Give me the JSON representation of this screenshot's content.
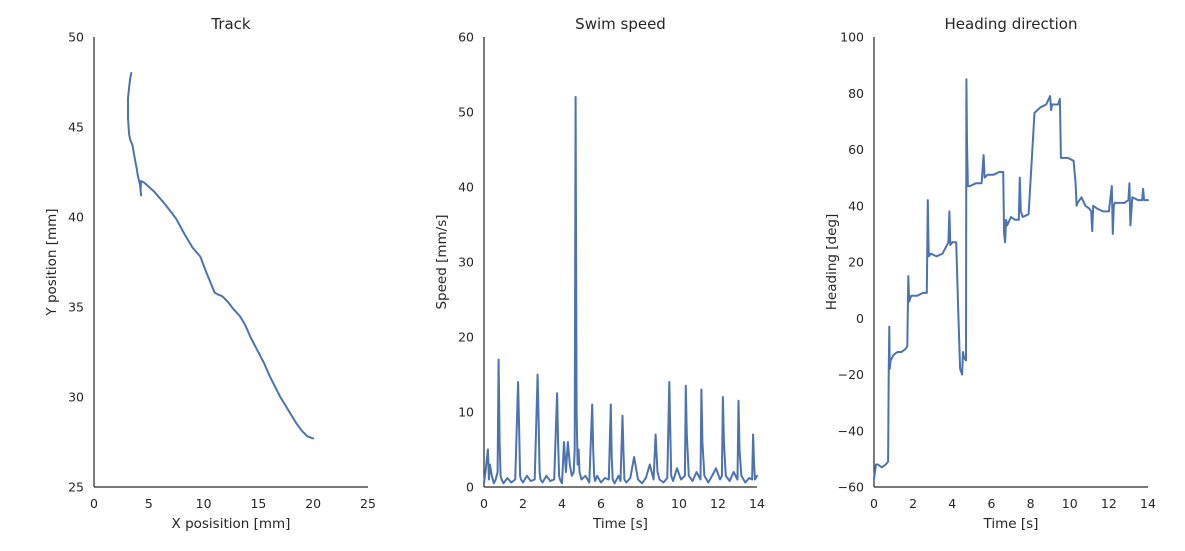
{
  "chart_data": [
    {
      "type": "line",
      "title": "Track",
      "xlabel": "X posisition [mm]",
      "ylabel": "Y position [mm]",
      "xlim": [
        0,
        25
      ],
      "ylim": [
        25,
        50
      ],
      "xticks": [
        "0",
        "5",
        "10",
        "15",
        "20",
        "25"
      ],
      "yticks": [
        "25",
        "30",
        "35",
        "40",
        "45",
        "50"
      ],
      "grid": false,
      "series": [
        {
          "color": "#4c72b0",
          "x": [
            3.4,
            3.3,
            3.2,
            3.1,
            3.1,
            3.1,
            3.2,
            3.3,
            3.5,
            3.8,
            3.9,
            4.0,
            4.2,
            4.3,
            4.25,
            4.3,
            4.6,
            5.5,
            6.5,
            7.5,
            8.3,
            9.0,
            9.7,
            10.2,
            10.6,
            11.0,
            11.3,
            11.7,
            12.2,
            12.7,
            13.3,
            13.8,
            14.3,
            14.9,
            15.5,
            16.0,
            16.5,
            17.0,
            17.5,
            18.0,
            18.5,
            19.0,
            19.5,
            20.0
          ],
          "y": [
            48.0,
            47.7,
            47.2,
            46.6,
            46.1,
            45.5,
            44.6,
            44.3,
            44.0,
            43.0,
            42.7,
            42.3,
            41.8,
            41.2,
            41.5,
            42.0,
            41.9,
            41.4,
            40.7,
            39.9,
            39.0,
            38.3,
            37.8,
            37.0,
            36.4,
            35.8,
            35.7,
            35.6,
            35.3,
            34.9,
            34.5,
            34.0,
            33.3,
            32.6,
            31.9,
            31.2,
            30.6,
            30.0,
            29.5,
            29.0,
            28.5,
            28.1,
            27.8,
            27.7
          ]
        }
      ]
    },
    {
      "type": "line",
      "title": "Swim speed",
      "xlabel": "Time [s]",
      "ylabel": "Speed [mm/s]",
      "xlim": [
        0,
        14
      ],
      "ylim": [
        0,
        60
      ],
      "xticks": [
        "0",
        "2",
        "4",
        "6",
        "8",
        "10",
        "12",
        "14"
      ],
      "yticks": [
        "0",
        "10",
        "20",
        "30",
        "40",
        "50",
        "60"
      ],
      "grid": false,
      "series": [
        {
          "color": "#4c72b0",
          "x": [
            0.0,
            0.1,
            0.2,
            0.25,
            0.3,
            0.4,
            0.5,
            0.6,
            0.7,
            0.75,
            0.8,
            0.85,
            0.9,
            1.0,
            1.2,
            1.4,
            1.6,
            1.75,
            1.8,
            1.85,
            1.9,
            2.0,
            2.2,
            2.4,
            2.6,
            2.75,
            2.8,
            2.85,
            2.9,
            3.0,
            3.2,
            3.4,
            3.6,
            3.75,
            3.8,
            3.85,
            3.9,
            4.0,
            4.1,
            4.2,
            4.3,
            4.4,
            4.5,
            4.6,
            4.65,
            4.7,
            4.75,
            4.8,
            4.85,
            4.9,
            5.0,
            5.2,
            5.4,
            5.55,
            5.6,
            5.65,
            5.7,
            5.8,
            6.0,
            6.2,
            6.4,
            6.5,
            6.55,
            6.6,
            6.7,
            6.9,
            7.0,
            7.1,
            7.15,
            7.2,
            7.3,
            7.5,
            7.7,
            7.9,
            8.1,
            8.3,
            8.5,
            8.7,
            8.8,
            8.9,
            9.0,
            9.2,
            9.4,
            9.5,
            9.55,
            9.6,
            9.7,
            9.9,
            10.1,
            10.3,
            10.35,
            10.4,
            10.5,
            10.7,
            10.9,
            11.1,
            11.15,
            11.2,
            11.3,
            11.5,
            11.7,
            11.9,
            12.1,
            12.2,
            12.25,
            12.3,
            12.4,
            12.6,
            12.8,
            13.0,
            13.05,
            13.1,
            13.2,
            13.4,
            13.6,
            13.75,
            13.8,
            13.85,
            13.9,
            14.0
          ],
          "y": [
            0.5,
            2.5,
            5.0,
            1.0,
            3.0,
            1.5,
            0.5,
            1.0,
            2.0,
            17.0,
            6.0,
            1.5,
            1.0,
            0.5,
            1.2,
            0.6,
            1.0,
            14.0,
            8.0,
            1.5,
            1.0,
            0.6,
            1.5,
            0.8,
            1.0,
            15.0,
            9.0,
            2.0,
            1.0,
            0.6,
            1.5,
            0.8,
            1.0,
            12.5,
            6.0,
            1.5,
            1.0,
            0.5,
            6.0,
            2.0,
            6.0,
            3.0,
            1.5,
            2.0,
            5.0,
            52.0,
            10.0,
            3.0,
            5.0,
            2.0,
            1.0,
            1.5,
            0.6,
            11.0,
            5.0,
            1.5,
            0.8,
            1.5,
            0.6,
            1.2,
            1.0,
            11.0,
            4.0,
            1.0,
            0.5,
            1.5,
            0.8,
            9.5,
            5.0,
            1.0,
            0.6,
            1.2,
            4.0,
            1.0,
            0.5,
            1.2,
            3.0,
            1.0,
            7.0,
            2.0,
            1.0,
            0.6,
            1.2,
            14.0,
            8.0,
            1.5,
            0.8,
            2.5,
            1.0,
            1.5,
            13.5,
            7.0,
            1.5,
            0.8,
            2.0,
            1.0,
            13.0,
            6.0,
            1.5,
            0.6,
            1.5,
            2.5,
            1.0,
            1.5,
            12.0,
            6.0,
            1.5,
            0.8,
            2.0,
            1.0,
            11.5,
            5.0,
            1.5,
            0.6,
            1.2,
            1.0,
            7.0,
            3.0,
            1.0,
            1.5
          ]
        }
      ]
    },
    {
      "type": "line",
      "title": "Heading direction",
      "xlabel": "Time [s]",
      "ylabel": "Heading [deg]",
      "xlim": [
        0,
        14
      ],
      "ylim": [
        -60,
        100
      ],
      "xticks": [
        "0",
        "2",
        "4",
        "6",
        "8",
        "10",
        "12",
        "14"
      ],
      "yticks": [
        "−60",
        "−40",
        "−20",
        "0",
        "20",
        "40",
        "60",
        "80",
        "100"
      ],
      "grid": false,
      "series": [
        {
          "color": "#4c72b0",
          "x": [
            0.0,
            0.1,
            0.2,
            0.4,
            0.6,
            0.72,
            0.75,
            0.78,
            0.8,
            0.85,
            1.0,
            1.2,
            1.4,
            1.6,
            1.7,
            1.75,
            1.8,
            1.9,
            2.2,
            2.5,
            2.7,
            2.75,
            2.78,
            2.8,
            2.9,
            3.2,
            3.5,
            3.8,
            3.85,
            3.9,
            4.0,
            4.2,
            4.3,
            4.4,
            4.5,
            4.55,
            4.6,
            4.7,
            4.72,
            4.75,
            4.8,
            4.9,
            5.2,
            5.5,
            5.6,
            5.65,
            5.8,
            6.1,
            6.4,
            6.6,
            6.65,
            6.7,
            6.75,
            6.8,
            7.0,
            7.2,
            7.4,
            7.45,
            7.5,
            7.6,
            7.9,
            8.2,
            8.5,
            8.8,
            9.0,
            9.05,
            9.1,
            9.4,
            9.5,
            9.55,
            9.6,
            9.9,
            10.2,
            10.3,
            10.35,
            10.4,
            10.6,
            10.8,
            11.0,
            11.1,
            11.15,
            11.2,
            11.4,
            11.7,
            12.0,
            12.15,
            12.2,
            12.25,
            12.3,
            12.5,
            12.8,
            13.0,
            13.05,
            13.1,
            13.2,
            13.5,
            13.7,
            13.75,
            13.8,
            14.0
          ],
          "y": [
            -57.0,
            -52.0,
            -52.0,
            -53.0,
            -52.0,
            -51.0,
            -20.0,
            -3.0,
            -18.0,
            -15.0,
            -13.0,
            -12.0,
            -12.0,
            -11.0,
            -10.0,
            15.0,
            6.0,
            8.0,
            8.0,
            9.0,
            9.0,
            42.0,
            28.0,
            22.0,
            23.0,
            22.0,
            23.0,
            27.0,
            38.0,
            26.0,
            27.0,
            27.0,
            3.0,
            -18.0,
            -20.0,
            -12.0,
            -14.0,
            -15.0,
            85.0,
            62.0,
            47.0,
            47.0,
            48.0,
            48.0,
            58.0,
            50.0,
            51.0,
            51.0,
            52.0,
            52.0,
            30.0,
            27.0,
            35.0,
            33.0,
            36.0,
            35.0,
            35.0,
            50.0,
            38.0,
            36.0,
            37.0,
            73.0,
            75.0,
            76.0,
            79.0,
            74.0,
            76.0,
            76.0,
            78.0,
            57.0,
            57.0,
            57.0,
            56.0,
            48.0,
            40.0,
            41.0,
            43.0,
            40.0,
            39.0,
            38.0,
            31.0,
            40.0,
            39.0,
            38.0,
            38.0,
            47.0,
            30.0,
            40.0,
            41.0,
            41.0,
            41.0,
            42.0,
            48.0,
            33.0,
            43.0,
            42.0,
            42.0,
            46.0,
            42.0,
            42.0
          ]
        }
      ]
    }
  ]
}
